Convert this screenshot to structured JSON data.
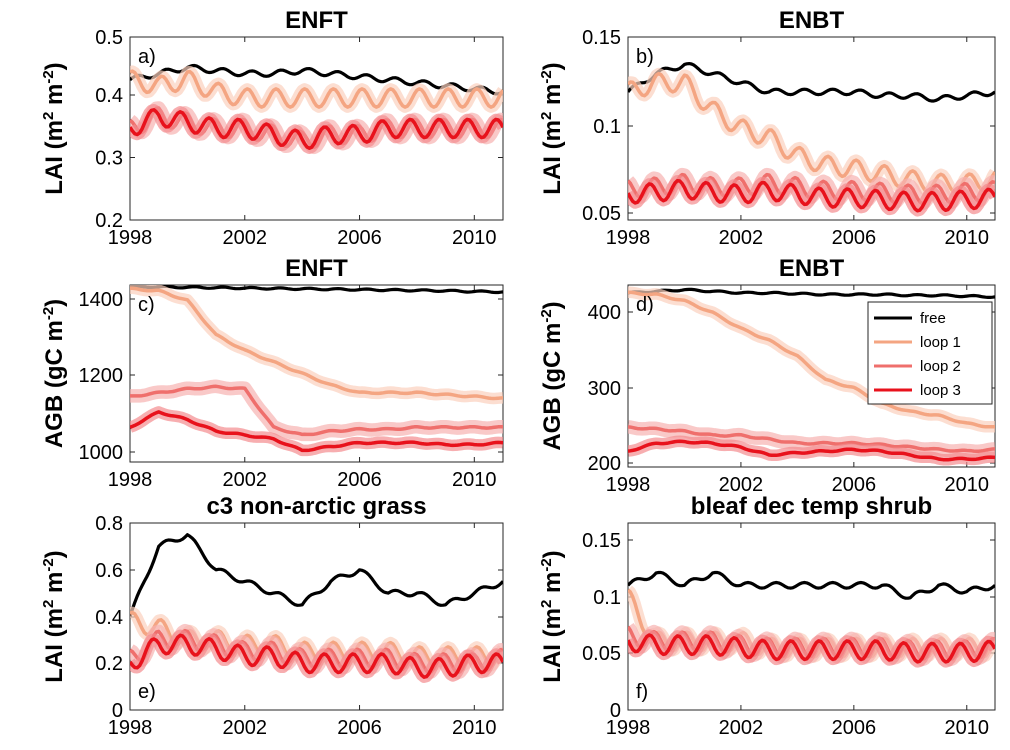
{
  "panels": [
    {
      "id": "a",
      "title": "ENFT",
      "panel_label": "a)",
      "ylabel": {
        "main": "LAI (m",
        "sup1": "2",
        "mid": " m",
        "sup2": "-2",
        "end": ")"
      },
      "yticks": [
        "0.2",
        "0.3",
        "0.4",
        "0.5"
      ],
      "xticks": [
        "1998",
        "2002",
        "2006",
        "2010"
      ]
    },
    {
      "id": "b",
      "title": "ENBT",
      "panel_label": "b)",
      "ylabel": {
        "main": "LAI (m",
        "sup1": "2",
        "mid": " m",
        "sup2": "-2",
        "end": ")"
      },
      "yticks": [
        "0.05",
        "0.1",
        "0.15"
      ],
      "xticks": [
        "1998",
        "2002",
        "2006",
        "2010"
      ]
    },
    {
      "id": "c",
      "title": "ENFT",
      "panel_label": "c)",
      "ylabel": {
        "main": "AGB (gC m",
        "sup1": "-2",
        "mid": "",
        "sup2": "",
        "end": ")"
      },
      "yticks": [
        "1000",
        "1200",
        "1400"
      ],
      "xticks": [
        "1998",
        "2002",
        "2006",
        "2010"
      ]
    },
    {
      "id": "d",
      "title": "ENBT",
      "panel_label": "d)",
      "ylabel": {
        "main": "AGB (gC m",
        "sup1": "-2",
        "mid": "",
        "sup2": "",
        "end": ")"
      },
      "yticks": [
        "200",
        "300",
        "400"
      ],
      "xticks": [
        "1998",
        "2002",
        "2006",
        "2010"
      ]
    },
    {
      "id": "e",
      "title": "c3 non-arctic grass",
      "panel_label": "e)",
      "ylabel": {
        "main": "LAI (m",
        "sup1": "2",
        "mid": " m",
        "sup2": "-2",
        "end": ")"
      },
      "yticks": [
        "0",
        "0.2",
        "0.4",
        "0.6",
        "0.8"
      ],
      "xticks": [
        "1998",
        "2002",
        "2006",
        "2010"
      ]
    },
    {
      "id": "f",
      "title": "bleaf dec temp shrub",
      "panel_label": "f)",
      "ylabel": {
        "main": "LAI (m",
        "sup1": "2",
        "mid": " m",
        "sup2": "-2",
        "end": ")"
      },
      "yticks": [
        "0",
        "0.05",
        "0.1",
        "0.15"
      ],
      "xticks": [
        "1998",
        "2002",
        "2006",
        "2010"
      ]
    }
  ],
  "legend": {
    "items": [
      {
        "label": "free",
        "color": "#000000"
      },
      {
        "label": "loop 1",
        "color": "#f4a582"
      },
      {
        "label": "loop 2",
        "color": "#ef6f6c"
      },
      {
        "label": "loop 3",
        "color": "#e8121c"
      }
    ]
  },
  "chart_data": [
    {
      "type": "line",
      "title": "ENFT",
      "ylabel": "LAI (m2 m-2)",
      "xlim": [
        1998,
        2011
      ],
      "ylim": [
        0.2,
        0.5
      ],
      "x": [
        1998,
        1999,
        2000,
        2001,
        2002,
        2003,
        2004,
        2005,
        2006,
        2007,
        2008,
        2009,
        2010,
        2011
      ],
      "series": [
        {
          "name": "free",
          "values": [
            0.43,
            0.44,
            0.45,
            0.445,
            0.44,
            0.44,
            0.445,
            0.44,
            0.435,
            0.43,
            0.425,
            0.42,
            0.415,
            0.41
          ]
        },
        {
          "name": "loop 1",
          "values": [
            0.43,
            0.42,
            0.43,
            0.41,
            0.4,
            0.4,
            0.4,
            0.4,
            0.4,
            0.4,
            0.4,
            0.4,
            0.4,
            0.4
          ]
        },
        {
          "name": "loop 2",
          "values": [
            0.35,
            0.37,
            0.36,
            0.35,
            0.35,
            0.34,
            0.33,
            0.34,
            0.34,
            0.35,
            0.35,
            0.35,
            0.35,
            0.35
          ]
        },
        {
          "name": "loop 3",
          "values": [
            0.35,
            0.37,
            0.36,
            0.35,
            0.35,
            0.34,
            0.33,
            0.34,
            0.34,
            0.35,
            0.35,
            0.35,
            0.35,
            0.35
          ]
        }
      ]
    },
    {
      "type": "line",
      "title": "ENBT",
      "ylabel": "LAI (m2 m-2)",
      "xlim": [
        1998,
        2011
      ],
      "ylim": [
        0.05,
        0.15
      ],
      "x": [
        1998,
        1999,
        2000,
        2001,
        2002,
        2003,
        2004,
        2005,
        2006,
        2007,
        2008,
        2009,
        2010,
        2011
      ],
      "series": [
        {
          "name": "free",
          "values": [
            0.12,
            0.13,
            0.135,
            0.13,
            0.125,
            0.12,
            0.12,
            0.12,
            0.12,
            0.118,
            0.118,
            0.116,
            0.118,
            0.12
          ]
        },
        {
          "name": "loop 1",
          "values": [
            0.12,
            0.125,
            0.125,
            0.11,
            0.1,
            0.095,
            0.085,
            0.08,
            0.078,
            0.075,
            0.072,
            0.07,
            0.07,
            0.072
          ]
        },
        {
          "name": "loop 2",
          "values": [
            0.067,
            0.068,
            0.07,
            0.068,
            0.068,
            0.07,
            0.068,
            0.066,
            0.066,
            0.065,
            0.064,
            0.064,
            0.065,
            0.066
          ]
        },
        {
          "name": "loop 3",
          "values": [
            0.064,
            0.065,
            0.067,
            0.065,
            0.064,
            0.066,
            0.064,
            0.062,
            0.062,
            0.061,
            0.06,
            0.06,
            0.061,
            0.062
          ]
        }
      ]
    },
    {
      "type": "line",
      "title": "ENFT",
      "ylabel": "AGB (gC m-2)",
      "xlim": [
        1998,
        2011
      ],
      "ylim": [
        970,
        1430
      ],
      "x": [
        1998,
        1999,
        2000,
        2001,
        2002,
        2003,
        2004,
        2005,
        2006,
        2007,
        2008,
        2009,
        2010,
        2011
      ],
      "series": [
        {
          "name": "free",
          "values": [
            1425,
            1425,
            1424,
            1423,
            1422,
            1421,
            1420,
            1419,
            1418,
            1417,
            1416,
            1415,
            1413,
            1412
          ]
        },
        {
          "name": "loop 1",
          "values": [
            1420,
            1415,
            1390,
            1300,
            1260,
            1230,
            1200,
            1170,
            1150,
            1150,
            1150,
            1145,
            1140,
            1135
          ]
        },
        {
          "name": "loop 2",
          "values": [
            1140,
            1150,
            1160,
            1165,
            1160,
            1060,
            1040,
            1050,
            1055,
            1055,
            1060,
            1060,
            1060,
            1060
          ]
        },
        {
          "name": "loop 3",
          "values": [
            1060,
            1100,
            1080,
            1050,
            1040,
            1030,
            1000,
            1010,
            1020,
            1020,
            1020,
            1015,
            1015,
            1020
          ]
        }
      ]
    },
    {
      "type": "line",
      "title": "ENBT",
      "ylabel": "AGB (gC m-2)",
      "xlim": [
        1998,
        2011
      ],
      "ylim": [
        200,
        430
      ],
      "x": [
        1998,
        1999,
        2000,
        2001,
        2002,
        2003,
        2004,
        2005,
        2006,
        2007,
        2008,
        2009,
        2010,
        2011
      ],
      "series": [
        {
          "name": "free",
          "values": [
            420,
            422,
            424,
            422,
            420,
            420,
            419,
            418,
            418,
            418,
            417,
            417,
            416,
            415
          ]
        },
        {
          "name": "loop 1",
          "values": [
            420,
            418,
            410,
            395,
            375,
            360,
            340,
            310,
            300,
            280,
            270,
            265,
            255,
            250
          ]
        },
        {
          "name": "loop 2",
          "values": [
            250,
            248,
            245,
            240,
            240,
            235,
            230,
            230,
            230,
            228,
            225,
            222,
            220,
            222
          ]
        },
        {
          "name": "loop 3",
          "values": [
            220,
            230,
            232,
            230,
            225,
            215,
            218,
            220,
            222,
            220,
            215,
            210,
            210,
            212
          ]
        }
      ]
    },
    {
      "type": "line",
      "title": "c3 non-arctic grass",
      "ylabel": "LAI (m2 m-2)",
      "xlim": [
        1998,
        2011
      ],
      "ylim": [
        0,
        0.8
      ],
      "x": [
        1998,
        1999,
        2000,
        2001,
        2002,
        2003,
        2004,
        2005,
        2006,
        2007,
        2008,
        2009,
        2010,
        2011
      ],
      "series": [
        {
          "name": "free",
          "values": [
            0.4,
            0.7,
            0.75,
            0.6,
            0.55,
            0.5,
            0.45,
            0.55,
            0.6,
            0.5,
            0.5,
            0.45,
            0.5,
            0.55
          ]
        },
        {
          "name": "loop 1",
          "values": [
            0.38,
            0.35,
            0.3,
            0.3,
            0.28,
            0.28,
            0.25,
            0.25,
            0.25,
            0.25,
            0.23,
            0.23,
            0.23,
            0.23
          ]
        },
        {
          "name": "loop 2",
          "values": [
            0.22,
            0.3,
            0.3,
            0.28,
            0.25,
            0.25,
            0.22,
            0.22,
            0.22,
            0.22,
            0.2,
            0.2,
            0.2,
            0.22
          ]
        },
        {
          "name": "loop 3",
          "values": [
            0.2,
            0.28,
            0.28,
            0.26,
            0.23,
            0.23,
            0.2,
            0.2,
            0.2,
            0.2,
            0.18,
            0.18,
            0.2,
            0.2
          ]
        }
      ]
    },
    {
      "type": "line",
      "title": "bleaf dec temp shrub",
      "ylabel": "LAI (m2 m-2)",
      "xlim": [
        1998,
        2011
      ],
      "ylim": [
        0,
        0.15
      ],
      "x": [
        1998,
        1999,
        2000,
        2001,
        2002,
        2003,
        2004,
        2005,
        2006,
        2007,
        2008,
        2009,
        2010,
        2011
      ],
      "series": [
        {
          "name": "free",
          "values": [
            0.1,
            0.11,
            0.1,
            0.11,
            0.1,
            0.1,
            0.1,
            0.1,
            0.1,
            0.1,
            0.09,
            0.1,
            0.095,
            0.1
          ]
        },
        {
          "name": "loop 1",
          "values": [
            0.09,
            0.055,
            0.055,
            0.055,
            0.055,
            0.05,
            0.05,
            0.05,
            0.05,
            0.05,
            0.05,
            0.05,
            0.05,
            0.05
          ]
        },
        {
          "name": "loop 2",
          "values": [
            0.06,
            0.055,
            0.055,
            0.055,
            0.052,
            0.05,
            0.05,
            0.05,
            0.05,
            0.05,
            0.048,
            0.048,
            0.048,
            0.05
          ]
        },
        {
          "name": "loop 3",
          "values": [
            0.055,
            0.052,
            0.052,
            0.052,
            0.05,
            0.048,
            0.048,
            0.048,
            0.048,
            0.048,
            0.046,
            0.046,
            0.046,
            0.048
          ]
        }
      ]
    }
  ]
}
